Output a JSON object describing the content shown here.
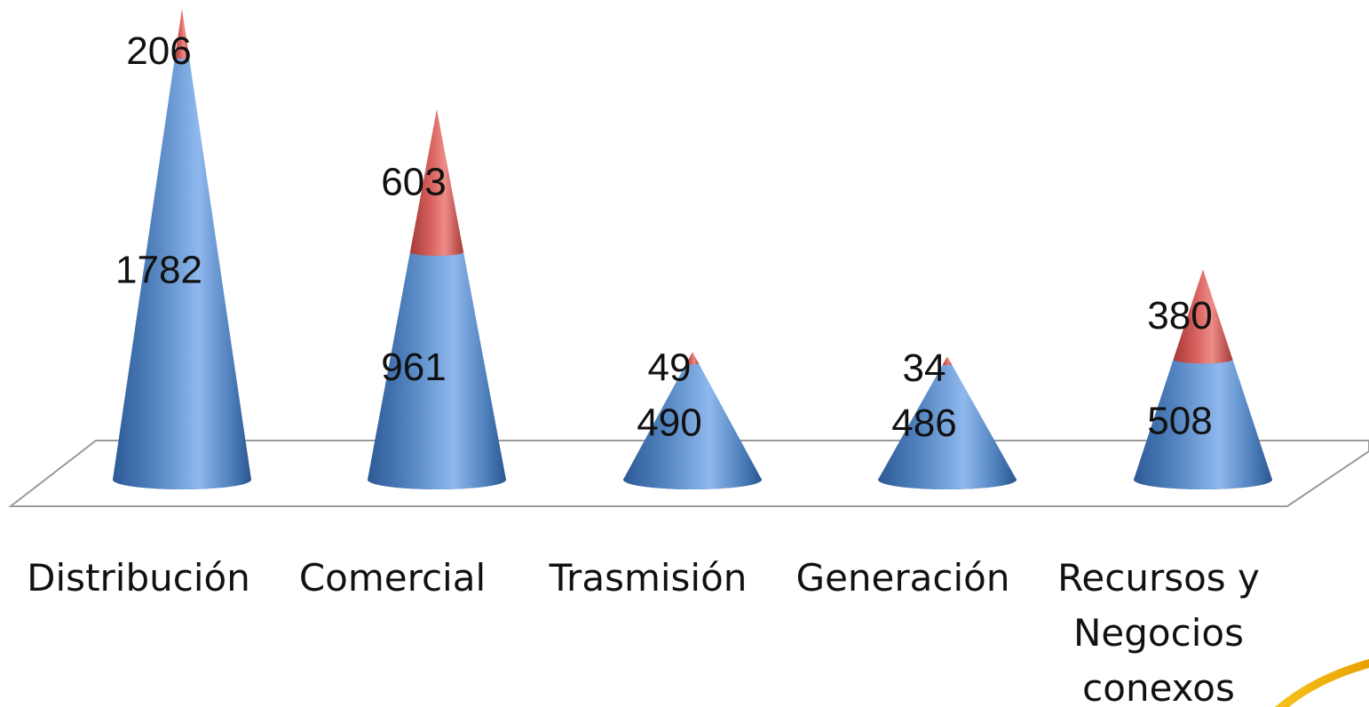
{
  "chart_data": {
    "type": "bar",
    "subtype": "stacked-3d-cone",
    "categories": [
      "Distribución",
      "Comercial",
      "Trasmisión",
      "Generación",
      "Recursos y Negocios conexos"
    ],
    "category_lines": [
      [
        "Distribución"
      ],
      [
        "Comercial"
      ],
      [
        "Trasmisión"
      ],
      [
        "Generación"
      ],
      [
        "Recursos y",
        "Negocios",
        "conexos"
      ]
    ],
    "series": [
      {
        "values": [
          1782,
          961,
          490,
          486,
          508
        ],
        "color": "#4f81bd"
      },
      {
        "values": [
          206,
          603,
          49,
          34,
          380
        ],
        "color": "#c0504d"
      }
    ],
    "title": "",
    "xlabel": "",
    "ylabel": "",
    "legend": "none",
    "grid": false
  }
}
